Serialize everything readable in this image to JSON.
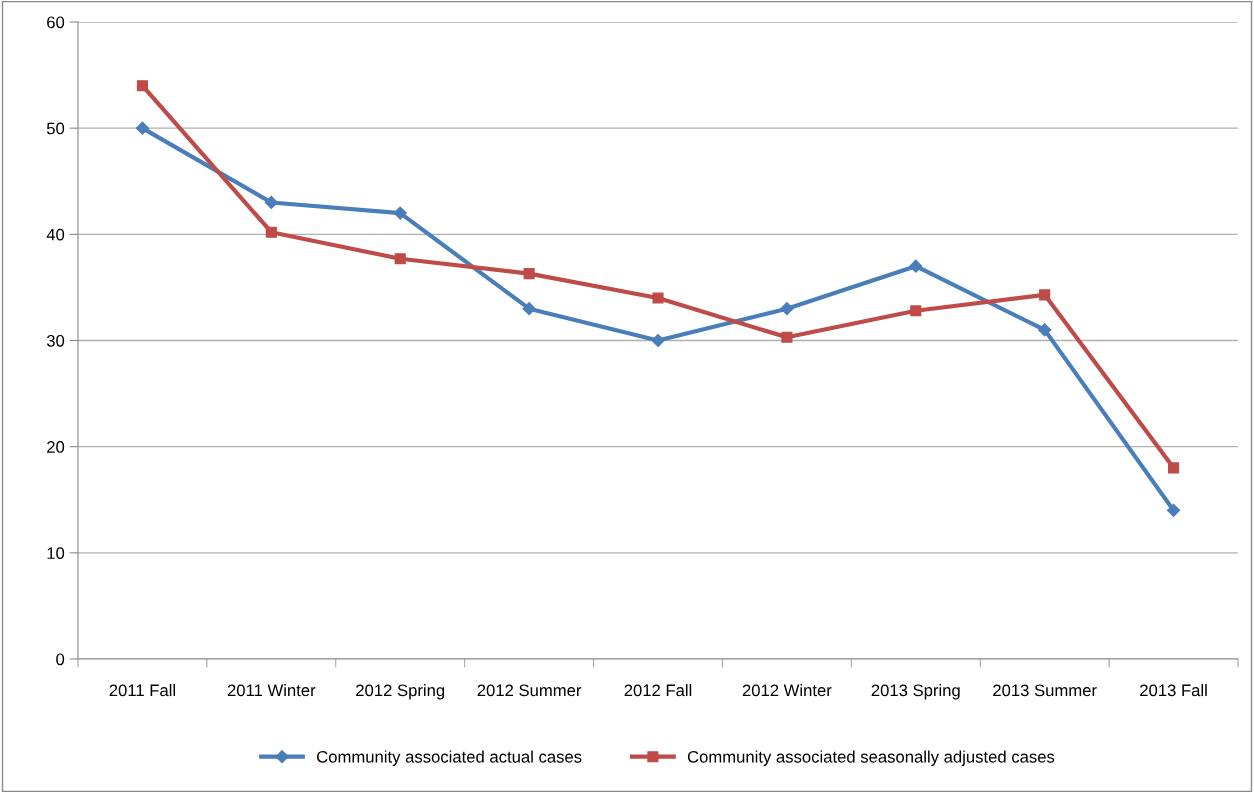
{
  "chart_data": {
    "type": "line",
    "categories": [
      "2011 Fall",
      "2011 Winter",
      "2012 Spring",
      "2012 Summer",
      "2012 Fall",
      "2012 Winter",
      "2013 Spring",
      "2013 Summer",
      "2013 Fall"
    ],
    "series": [
      {
        "name": "Community associated actual cases",
        "color": "#4a7ebb",
        "marker": "diamond",
        "values": [
          50,
          43,
          42,
          33,
          30,
          33,
          37,
          31,
          14
        ]
      },
      {
        "name": "Community associated seasonally adjusted cases",
        "color": "#be4b48",
        "marker": "square",
        "values": [
          54,
          40.2,
          37.7,
          36.3,
          34,
          30.3,
          32.8,
          34.3,
          18
        ]
      }
    ],
    "ylim": [
      0,
      60
    ],
    "yticks": [
      0,
      10,
      20,
      30,
      40,
      50,
      60
    ],
    "grid": "y",
    "legend": "bottom",
    "line_style": "solid"
  }
}
